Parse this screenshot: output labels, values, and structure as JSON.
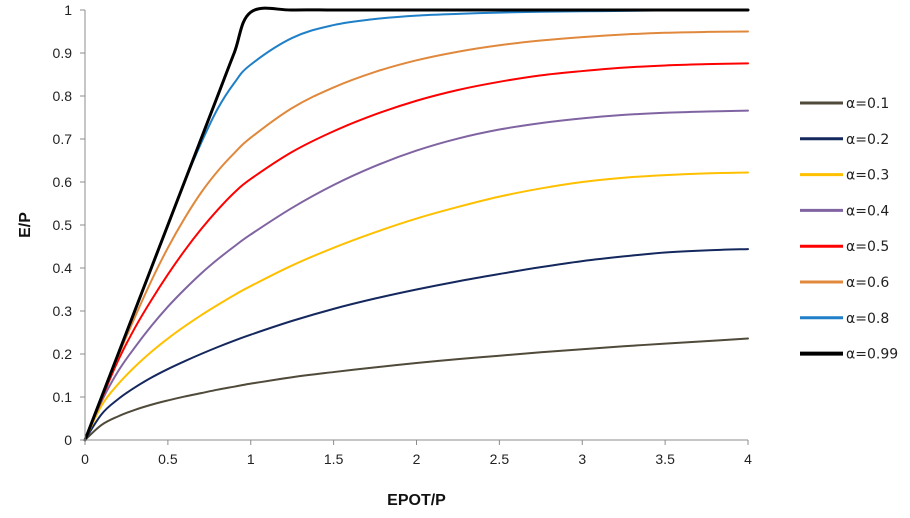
{
  "chart_data": {
    "type": "line",
    "xlabel": "EPOT/P",
    "ylabel": "E/P",
    "xlim": [
      0,
      4
    ],
    "ylim": [
      0,
      1
    ],
    "xticks": [
      "0",
      "0.5",
      "1",
      "1.5",
      "2",
      "2.5",
      "3",
      "3.5",
      "4"
    ],
    "yticks": [
      "0",
      "0.1",
      "0.2",
      "0.3",
      "0.4",
      "0.5",
      "0.6",
      "0.7",
      "0.8",
      "0.9",
      "1"
    ],
    "grid": false,
    "legend_position": "right",
    "x": [
      0,
      0.1,
      0.2,
      0.3,
      0.4,
      0.5,
      0.6,
      0.7,
      0.8,
      0.9,
      1.0,
      1.25,
      1.5,
      1.75,
      2.0,
      2.25,
      2.5,
      2.75,
      3.0,
      3.25,
      3.5,
      3.75,
      4.0
    ],
    "series": [
      {
        "name": "α=0.1",
        "color": "#4f4a3a",
        "width": 2,
        "values": [
          0,
          0.035,
          0.055,
          0.07,
          0.082,
          0.092,
          0.101,
          0.109,
          0.117,
          0.124,
          0.131,
          0.146,
          0.158,
          0.169,
          0.179,
          0.188,
          0.196,
          0.204,
          0.211,
          0.218,
          0.224,
          0.23,
          0.236
        ]
      },
      {
        "name": "α=0.2",
        "color": "#14285e",
        "width": 2,
        "values": [
          0,
          0.06,
          0.095,
          0.122,
          0.145,
          0.165,
          0.183,
          0.2,
          0.216,
          0.231,
          0.245,
          0.277,
          0.305,
          0.329,
          0.35,
          0.369,
          0.386,
          0.402,
          0.416,
          0.427,
          0.436,
          0.441,
          0.444
        ]
      },
      {
        "name": "α=0.3",
        "color": "#ffc000",
        "width": 2,
        "values": [
          0,
          0.08,
          0.13,
          0.17,
          0.205,
          0.236,
          0.264,
          0.29,
          0.314,
          0.337,
          0.358,
          0.406,
          0.447,
          0.483,
          0.515,
          0.542,
          0.566,
          0.585,
          0.6,
          0.61,
          0.616,
          0.62,
          0.622
        ]
      },
      {
        "name": "α=0.4",
        "color": "#8064a2",
        "width": 2,
        "values": [
          0,
          0.09,
          0.16,
          0.215,
          0.265,
          0.31,
          0.35,
          0.387,
          0.42,
          0.45,
          0.478,
          0.54,
          0.593,
          0.637,
          0.673,
          0.701,
          0.722,
          0.737,
          0.748,
          0.756,
          0.761,
          0.764,
          0.766
        ]
      },
      {
        "name": "α=0.5",
        "color": "#ff0000",
        "width": 2,
        "values": [
          0,
          0.095,
          0.185,
          0.26,
          0.325,
          0.385,
          0.44,
          0.49,
          0.535,
          0.575,
          0.607,
          0.67,
          0.718,
          0.757,
          0.789,
          0.814,
          0.833,
          0.848,
          0.858,
          0.866,
          0.871,
          0.874,
          0.876
        ]
      },
      {
        "name": "α=0.6",
        "color": "#e0883c",
        "width": 2,
        "values": [
          0,
          0.098,
          0.195,
          0.285,
          0.37,
          0.447,
          0.515,
          0.575,
          0.625,
          0.667,
          0.703,
          0.772,
          0.82,
          0.856,
          0.883,
          0.903,
          0.918,
          0.929,
          0.937,
          0.943,
          0.947,
          0.949,
          0.95
        ]
      },
      {
        "name": "α=0.8",
        "color": "#1f7fc7",
        "width": 2,
        "values": [
          0,
          0.1,
          0.2,
          0.3,
          0.4,
          0.5,
          0.6,
          0.69,
          0.77,
          0.83,
          0.873,
          0.935,
          0.965,
          0.979,
          0.987,
          0.991,
          0.994,
          0.996,
          0.997,
          0.998,
          0.999,
          0.999,
          1.0
        ]
      },
      {
        "name": "α=0.99",
        "color": "#000000",
        "width": 3,
        "values": [
          0,
          0.1,
          0.2,
          0.3,
          0.4,
          0.5,
          0.6,
          0.7,
          0.8,
          0.9,
          0.995,
          1.0,
          1.0,
          1.0,
          1.0,
          1.0,
          1.0,
          1.0,
          1.0,
          1.0,
          1.0,
          1.0,
          1.0
        ]
      }
    ]
  }
}
